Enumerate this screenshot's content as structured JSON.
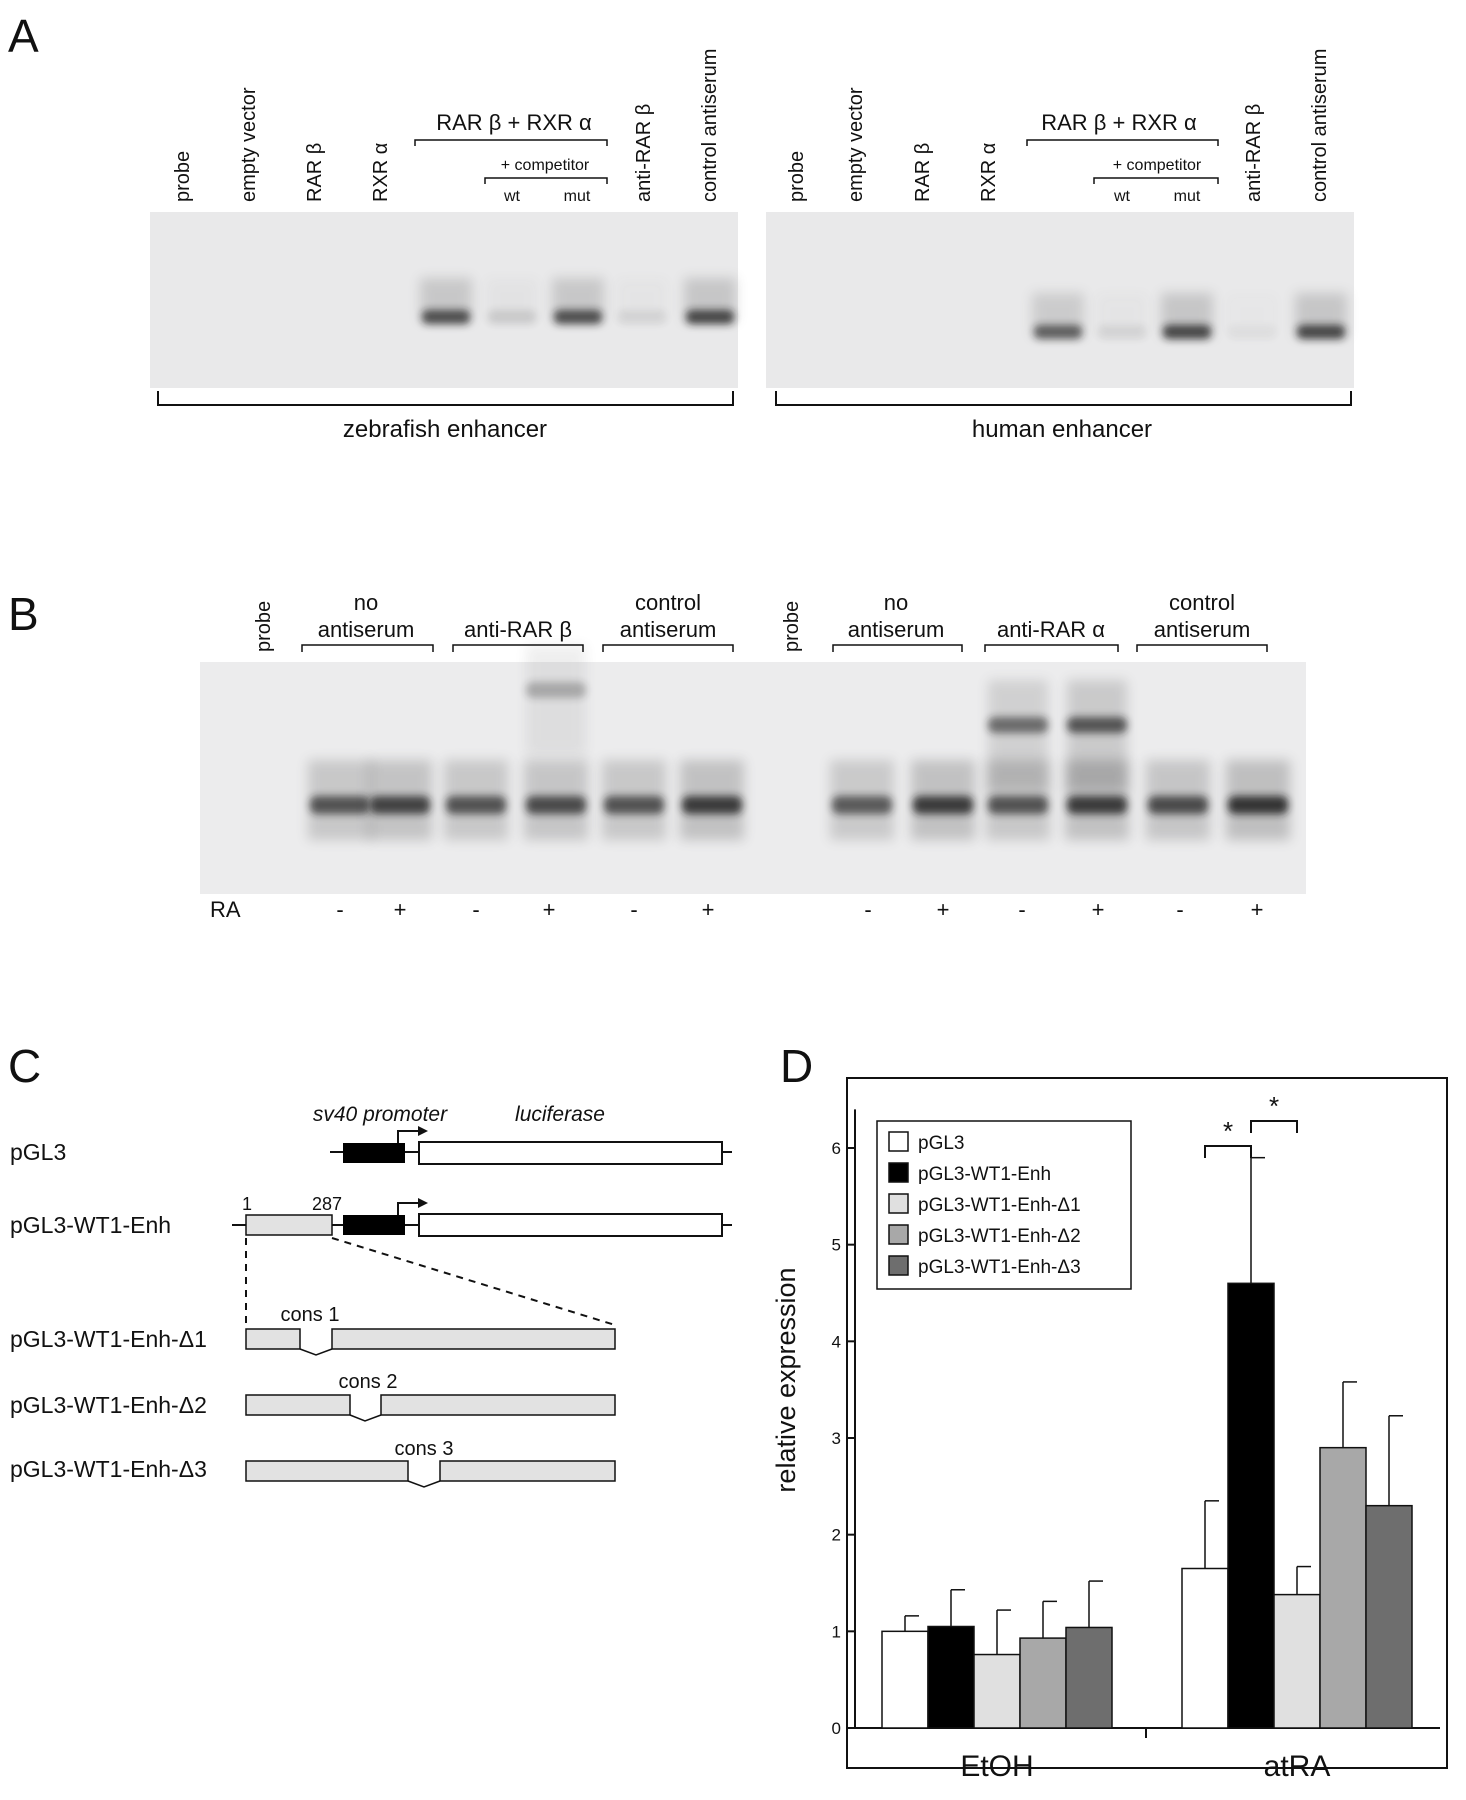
{
  "panel_a": {
    "letter": "A",
    "lane_labels": [
      "probe",
      "empty vector",
      "RAR β",
      "RXR α",
      "anti-RAR β",
      "control antiserum"
    ],
    "group_label": "RAR β + RXR α",
    "competitor_label": "+ competitor",
    "competitor_lanes": [
      "wt",
      "mut"
    ],
    "gels": [
      {
        "caption": "zebrafish enhancer",
        "band_intensities": [
          0,
          0,
          0,
          0,
          0.85,
          0.15,
          0.85,
          0.1,
          0.9
        ]
      },
      {
        "caption": "human enhancer",
        "band_intensities": [
          0,
          0,
          0,
          0,
          0.75,
          0.1,
          0.9,
          0.05,
          0.9
        ]
      }
    ]
  },
  "panel_b": {
    "letter": "B",
    "probe_label": "probe",
    "groups_left": [
      {
        "line1": "no",
        "line2": "antiserum"
      },
      {
        "line1": "anti-RAR β",
        "line2": ""
      },
      {
        "line1": "control",
        "line2": "antiserum"
      }
    ],
    "groups_right": [
      {
        "line1": "no",
        "line2": "antiserum"
      },
      {
        "line1": "anti-RAR α",
        "line2": ""
      },
      {
        "line1": "control",
        "line2": "antiserum"
      }
    ],
    "ra_label": "RA",
    "ra_signs": [
      "-",
      "+",
      "-",
      "+",
      "-",
      "+",
      "-",
      "+",
      "-",
      "+",
      "-",
      "+"
    ]
  },
  "panel_c": {
    "letter": "C",
    "promoter_label": "sv40 promoter",
    "luciferase_label": "luciferase",
    "constructs": [
      "pGL3",
      "pGL3-WT1-Enh",
      "pGL3-WT1-Enh-Δ1",
      "pGL3-WT1-Enh-Δ2",
      "pGL3-WT1-Enh-Δ3"
    ],
    "enh_start": "1",
    "enh_end": "287",
    "deletion_labels": [
      "cons 1",
      "cons 2",
      "cons 3"
    ]
  },
  "panel_d": {
    "letter": "D",
    "significance_mark": "*"
  },
  "chart_data": {
    "type": "bar",
    "title": "",
    "xlabel": "",
    "ylabel": "relative expression",
    "categories": [
      "EtOH",
      "atRA"
    ],
    "ylim": [
      0,
      7
    ],
    "yticks": [
      0,
      1,
      2,
      3,
      4,
      5,
      6
    ],
    "legend_position": "top-left",
    "series": [
      {
        "name": "pGL3",
        "values": [
          1.0,
          1.65
        ],
        "errors": [
          0.16,
          0.7
        ],
        "color": "#ffffff"
      },
      {
        "name": "pGL3-WT1-Enh",
        "values": [
          1.05,
          4.6
        ],
        "errors": [
          0.38,
          1.3
        ],
        "color": "#000000"
      },
      {
        "name": "pGL3-WT1-Enh-Δ1",
        "values": [
          0.76,
          1.38
        ],
        "errors": [
          0.46,
          0.29
        ],
        "color": "#e0e0e0"
      },
      {
        "name": "pGL3-WT1-Enh-Δ2",
        "values": [
          0.93,
          2.9
        ],
        "errors": [
          0.38,
          0.68
        ],
        "color": "#a8a8a8"
      },
      {
        "name": "pGL3-WT1-Enh-Δ3",
        "values": [
          1.04,
          2.3
        ],
        "errors": [
          0.48,
          0.93
        ],
        "color": "#6e6e6e"
      }
    ],
    "significance": [
      {
        "category": "atRA",
        "between": [
          "pGL3",
          "pGL3-WT1-Enh"
        ],
        "mark": "*"
      },
      {
        "category": "atRA",
        "between": [
          "pGL3-WT1-Enh",
          "pGL3-WT1-Enh-Δ1"
        ],
        "mark": "*"
      }
    ]
  }
}
